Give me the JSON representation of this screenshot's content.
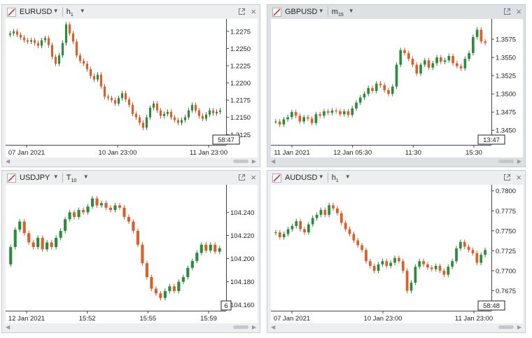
{
  "colors": {
    "up": "#2e8b3d",
    "down": "#d9602a",
    "axis": "#444444"
  },
  "icons": {
    "logo": "chart-logo-icon",
    "popout": "popout-icon",
    "close": "close-icon",
    "dropdown": "chevron-down-icon"
  },
  "panels": [
    {
      "symbol": "EURUSD",
      "tf_main": "h",
      "tf_sub": "1",
      "price_labels": [
        "1.2275",
        "1.2250",
        "1.2225",
        "1.2200",
        "1.2175",
        "1.2150",
        "1.2125"
      ],
      "price_ticks": [
        1.2275,
        1.225,
        1.2225,
        1.22,
        1.2175,
        1.215,
        1.2125
      ],
      "time_labels": [
        "07 Jan 2021",
        "10 Jan 23:00",
        "11 Jan 23:00"
      ],
      "timer": "58:47",
      "chart_data": {
        "type": "candlestick",
        "ylim": [
          1.211,
          1.229
        ],
        "start": 1.227,
        "path": [
          1.2272,
          1.2275,
          1.227,
          1.2266,
          1.2262,
          1.226,
          1.2262,
          1.2258,
          1.2254,
          1.2262,
          1.2265,
          1.2255,
          1.2238,
          1.2228,
          1.224,
          1.2258,
          1.2285,
          1.2272,
          1.226,
          1.224,
          1.2232,
          1.2228,
          1.222,
          1.221,
          1.2205,
          1.2212,
          1.2195,
          1.218,
          1.2178,
          1.2175,
          1.217,
          1.2178,
          1.2185,
          1.2176,
          1.2168,
          1.2155,
          1.215,
          1.2142,
          1.2135,
          1.215,
          1.2164,
          1.217,
          1.216,
          1.2152,
          1.2155,
          1.2158,
          1.215,
          1.2146,
          1.2142,
          1.2146,
          1.215,
          1.216,
          1.2168,
          1.216,
          1.2152,
          1.2148,
          1.2154,
          1.216,
          1.2156,
          1.2158,
          1.216
        ]
      }
    },
    {
      "symbol": "GBPUSD",
      "tf_main": "m",
      "tf_sub": "15",
      "price_labels": [
        "1.3575",
        "1.3550",
        "1.3525",
        "1.3500",
        "1.3475",
        "1.3450"
      ],
      "price_ticks": [
        1.3575,
        1.355,
        1.3525,
        1.35,
        1.3475,
        1.345
      ],
      "time_labels": [
        "11 Jan 2021",
        "12 Jan 05:30",
        "11:30",
        "15:30"
      ],
      "timer": "13:47",
      "chart_data": {
        "type": "candlestick",
        "ylim": [
          1.343,
          1.36
        ],
        "start": 1.3462,
        "path": [
          1.3462,
          1.3458,
          1.3465,
          1.3468,
          1.3475,
          1.347,
          1.3462,
          1.3468,
          1.3466,
          1.346,
          1.3472,
          1.347,
          1.3476,
          1.3474,
          1.3477,
          1.3476,
          1.3472,
          1.3476,
          1.3471,
          1.348,
          1.3488,
          1.3495,
          1.35,
          1.3508,
          1.3504,
          1.3514,
          1.3512,
          1.3505,
          1.35,
          1.351,
          1.354,
          1.356,
          1.3556,
          1.3548,
          1.354,
          1.3528,
          1.354,
          1.3546,
          1.3536,
          1.3542,
          1.355,
          1.3544,
          1.3546,
          1.3552,
          1.3542,
          1.3538,
          1.3535,
          1.3548,
          1.3556,
          1.3578,
          1.3588,
          1.3572,
          1.357
        ]
      }
    },
    {
      "symbol": "USDJPY",
      "tf_main": "T",
      "tf_sub": "10",
      "price_labels": [
        "104.240",
        "104.220",
        "104.200",
        "104.180",
        "104.160"
      ],
      "price_ticks": [
        104.24,
        104.22,
        104.2,
        104.18,
        104.16
      ],
      "time_labels": [
        "12 Jan 2021",
        "15:52",
        "15:55",
        "15:59"
      ],
      "timer": "6",
      "chart_data": {
        "type": "candlestick",
        "ylim": [
          104.155,
          104.262
        ],
        "start": 104.195,
        "path": [
          104.21,
          104.225,
          104.232,
          104.222,
          104.214,
          104.21,
          104.218,
          104.208,
          104.214,
          104.21,
          104.218,
          104.224,
          104.234,
          104.24,
          104.236,
          104.242,
          104.24,
          104.245,
          104.252,
          104.246,
          104.248,
          104.244,
          104.242,
          104.246,
          104.244,
          104.236,
          104.232,
          104.224,
          104.212,
          104.196,
          104.184,
          104.174,
          104.17,
          104.166,
          104.172,
          104.176,
          104.172,
          104.18,
          104.184,
          104.192,
          104.198,
          104.205,
          104.212,
          104.207,
          104.212,
          104.206,
          104.209
        ]
      }
    },
    {
      "symbol": "AUDUSD",
      "tf_main": "h",
      "tf_sub": "1",
      "price_labels": [
        "0.7800",
        "0.7775",
        "0.7750",
        "0.7725",
        "0.7700",
        "0.7675"
      ],
      "price_ticks": [
        0.78,
        0.7775,
        0.775,
        0.7725,
        0.77,
        0.7675
      ],
      "time_labels": [
        "07 Jan 2021",
        "10 Jan 23:00",
        "11 Jan 23:00"
      ],
      "timer": "58:48",
      "chart_data": {
        "type": "candlestick",
        "ylim": [
          0.765,
          0.7805
        ],
        "start": 0.7748,
        "path": [
          0.7748,
          0.7742,
          0.7746,
          0.7752,
          0.7756,
          0.7762,
          0.7752,
          0.7748,
          0.7758,
          0.7766,
          0.777,
          0.7776,
          0.777,
          0.7782,
          0.7778,
          0.7772,
          0.776,
          0.7752,
          0.7746,
          0.7738,
          0.7732,
          0.7726,
          0.7712,
          0.7706,
          0.77,
          0.7708,
          0.7712,
          0.7706,
          0.771,
          0.7716,
          0.7712,
          0.77,
          0.7675,
          0.7685,
          0.7705,
          0.7712,
          0.7708,
          0.7704,
          0.7702,
          0.7706,
          0.77,
          0.7695,
          0.7705,
          0.7712,
          0.7728,
          0.7736,
          0.773,
          0.7726,
          0.7722,
          0.771,
          0.772,
          0.7726
        ]
      }
    }
  ]
}
